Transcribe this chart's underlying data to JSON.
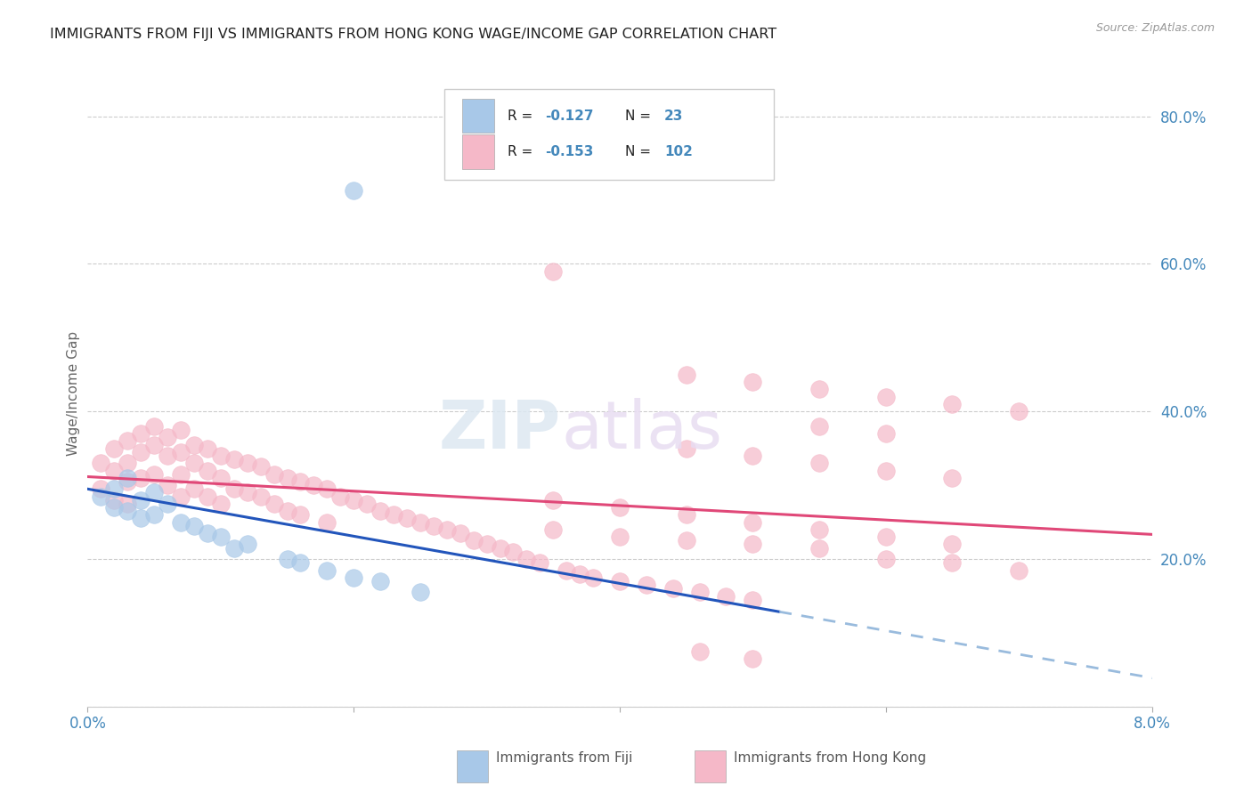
{
  "title": "IMMIGRANTS FROM FIJI VS IMMIGRANTS FROM HONG KONG WAGE/INCOME GAP CORRELATION CHART",
  "source": "Source: ZipAtlas.com",
  "ylabel": "Wage/Income Gap",
  "x_min": 0.0,
  "x_max": 0.08,
  "y_min": 0.0,
  "y_max": 0.85,
  "right_yticks": [
    0.0,
    0.2,
    0.4,
    0.6,
    0.8
  ],
  "right_yticklabels": [
    "",
    "20.0%",
    "40.0%",
    "60.0%",
    "80.0%"
  ],
  "fiji_color": "#a8c8e8",
  "hk_color": "#f5b8c8",
  "fiji_line_color": "#2255bb",
  "hk_line_color": "#e04878",
  "fiji_dash_color": "#99bbdd",
  "background_color": "#ffffff",
  "grid_color": "#cccccc",
  "legend_box_color": "#e8e8e8",
  "fiji_R": "-0.127",
  "fiji_N": "23",
  "hk_R": "-0.153",
  "hk_N": "102",
  "fiji_x": [
    0.001,
    0.002,
    0.002,
    0.003,
    0.003,
    0.004,
    0.004,
    0.005,
    0.005,
    0.006,
    0.007,
    0.008,
    0.009,
    0.01,
    0.011,
    0.012,
    0.015,
    0.016,
    0.018,
    0.02,
    0.022,
    0.025,
    0.02
  ],
  "fiji_y": [
    0.285,
    0.295,
    0.27,
    0.31,
    0.265,
    0.28,
    0.255,
    0.29,
    0.26,
    0.275,
    0.25,
    0.245,
    0.235,
    0.23,
    0.215,
    0.22,
    0.2,
    0.195,
    0.185,
    0.175,
    0.17,
    0.155,
    0.7
  ],
  "hk_x": [
    0.001,
    0.001,
    0.002,
    0.002,
    0.002,
    0.003,
    0.003,
    0.003,
    0.003,
    0.004,
    0.004,
    0.004,
    0.005,
    0.005,
    0.005,
    0.006,
    0.006,
    0.006,
    0.007,
    0.007,
    0.007,
    0.007,
    0.008,
    0.008,
    0.008,
    0.009,
    0.009,
    0.009,
    0.01,
    0.01,
    0.01,
    0.011,
    0.011,
    0.012,
    0.012,
    0.013,
    0.013,
    0.014,
    0.014,
    0.015,
    0.015,
    0.016,
    0.016,
    0.017,
    0.018,
    0.018,
    0.019,
    0.02,
    0.021,
    0.022,
    0.023,
    0.024,
    0.025,
    0.026,
    0.027,
    0.028,
    0.029,
    0.03,
    0.031,
    0.032,
    0.033,
    0.034,
    0.035,
    0.036,
    0.037,
    0.038,
    0.04,
    0.042,
    0.044,
    0.046,
    0.048,
    0.05,
    0.055,
    0.06,
    0.035,
    0.04,
    0.045,
    0.05,
    0.055,
    0.06,
    0.065,
    0.07,
    0.045,
    0.05,
    0.055,
    0.06,
    0.065,
    0.07,
    0.045,
    0.05,
    0.055,
    0.06,
    0.065,
    0.035,
    0.04,
    0.045,
    0.05,
    0.055,
    0.06,
    0.065,
    0.046,
    0.05
  ],
  "hk_y": [
    0.33,
    0.295,
    0.35,
    0.32,
    0.28,
    0.36,
    0.33,
    0.305,
    0.275,
    0.37,
    0.345,
    0.31,
    0.38,
    0.355,
    0.315,
    0.365,
    0.34,
    0.3,
    0.375,
    0.345,
    0.315,
    0.285,
    0.355,
    0.33,
    0.295,
    0.35,
    0.32,
    0.285,
    0.34,
    0.31,
    0.275,
    0.335,
    0.295,
    0.33,
    0.29,
    0.325,
    0.285,
    0.315,
    0.275,
    0.31,
    0.265,
    0.305,
    0.26,
    0.3,
    0.295,
    0.25,
    0.285,
    0.28,
    0.275,
    0.265,
    0.26,
    0.255,
    0.25,
    0.245,
    0.24,
    0.235,
    0.225,
    0.22,
    0.215,
    0.21,
    0.2,
    0.195,
    0.59,
    0.185,
    0.18,
    0.175,
    0.17,
    0.165,
    0.16,
    0.155,
    0.15,
    0.145,
    0.38,
    0.37,
    0.24,
    0.23,
    0.225,
    0.22,
    0.215,
    0.2,
    0.195,
    0.185,
    0.45,
    0.44,
    0.43,
    0.42,
    0.41,
    0.4,
    0.35,
    0.34,
    0.33,
    0.32,
    0.31,
    0.28,
    0.27,
    0.26,
    0.25,
    0.24,
    0.23,
    0.22,
    0.075,
    0.065
  ]
}
